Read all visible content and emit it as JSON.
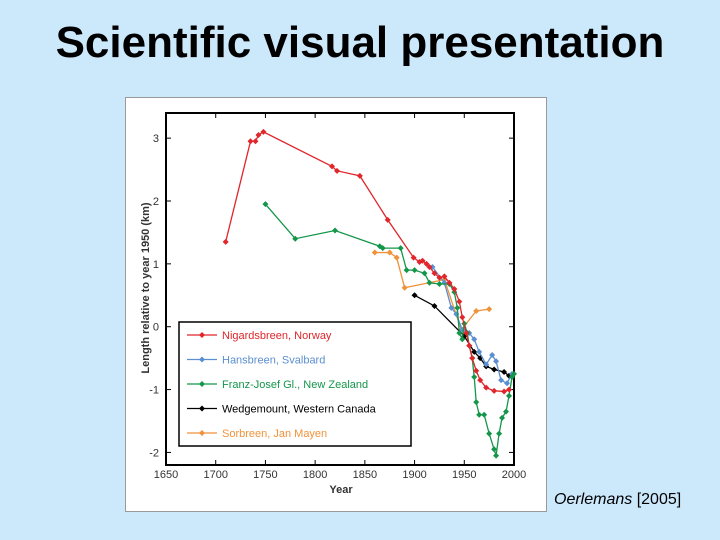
{
  "slide": {
    "title": "Scientific visual presentation",
    "credit_author": "Oerlemans",
    "credit_year": "[2005]"
  },
  "chart_data": {
    "type": "line",
    "xlabel": "Year",
    "ylabel": "Length relative to year 1950 (km)",
    "xlim": [
      1650,
      2000
    ],
    "ylim": [
      -2.2,
      3.4
    ],
    "xticks": [
      1650,
      1700,
      1750,
      1800,
      1850,
      1900,
      1950,
      2000
    ],
    "yticks": [
      -2,
      -1,
      0,
      1,
      2,
      3
    ],
    "grid": false,
    "legend": "bottom-left",
    "series": [
      {
        "name": "Nigardsbreen, Norway",
        "color": "#e0262b",
        "x": [
          1710,
          1735,
          1740,
          1743,
          1748,
          1817,
          1822,
          1845,
          1873,
          1899,
          1905,
          1908,
          1912,
          1915,
          1920,
          1925,
          1930,
          1935,
          1940,
          1945,
          1948,
          1952,
          1955,
          1958,
          1962,
          1966,
          1972,
          1980,
          1990,
          1995
        ],
        "y": [
          1.35,
          2.95,
          2.95,
          3.05,
          3.1,
          2.55,
          2.48,
          2.4,
          1.7,
          1.1,
          1.03,
          1.05,
          1.0,
          0.95,
          0.85,
          0.78,
          0.8,
          0.7,
          0.6,
          0.4,
          0.15,
          -0.1,
          -0.3,
          -0.5,
          -0.7,
          -0.85,
          -0.97,
          -1.02,
          -1.03,
          -1.0
        ]
      },
      {
        "name": "Hansbreen, Svalbard",
        "color": "#5b8fd1",
        "x": [
          1918,
          1930,
          1937,
          1942,
          1948,
          1955,
          1960,
          1965,
          1972,
          1978,
          1982,
          1987,
          1993,
          1998
        ],
        "y": [
          0.95,
          0.7,
          0.3,
          0.2,
          -0.05,
          -0.1,
          -0.2,
          -0.4,
          -0.6,
          -0.45,
          -0.55,
          -0.85,
          -0.9,
          -0.75
        ]
      },
      {
        "name": "Franz-Josef Gl., New Zealand",
        "color": "#14964a",
        "x": [
          1750,
          1780,
          1820,
          1865,
          1868,
          1886,
          1892,
          1900,
          1910,
          1915,
          1925,
          1935,
          1940,
          1943,
          1945,
          1948,
          1950,
          1953,
          1955,
          1958,
          1960,
          1962,
          1965,
          1970,
          1975,
          1980,
          1982,
          1985,
          1988,
          1992,
          1995,
          1998,
          2000
        ],
        "y": [
          1.95,
          1.4,
          1.53,
          1.28,
          1.25,
          1.25,
          0.9,
          0.9,
          0.85,
          0.7,
          0.68,
          0.68,
          0.55,
          0.3,
          -0.1,
          -0.2,
          0.05,
          -0.1,
          -0.3,
          -0.5,
          -0.8,
          -1.2,
          -1.4,
          -1.4,
          -1.7,
          -1.95,
          -2.05,
          -1.7,
          -1.45,
          -1.35,
          -1.1,
          -0.8,
          -0.75
        ]
      },
      {
        "name": "Wedgemount, Western Canada",
        "color": "#000000",
        "x": [
          1900,
          1920,
          1950,
          1960,
          1966,
          1972,
          1980,
          1990,
          1995
        ],
        "y": [
          0.5,
          0.33,
          -0.15,
          -0.4,
          -0.5,
          -0.63,
          -0.68,
          -0.72,
          -0.78
        ]
      },
      {
        "name": "Sorbreen, Jan Mayen",
        "color": "#f0923a",
        "x": [
          1860,
          1875,
          1882,
          1890,
          1930,
          1947,
          1962,
          1975
        ],
        "y": [
          1.18,
          1.18,
          1.1,
          0.62,
          0.75,
          -0.05,
          0.25,
          0.28
        ]
      }
    ]
  }
}
